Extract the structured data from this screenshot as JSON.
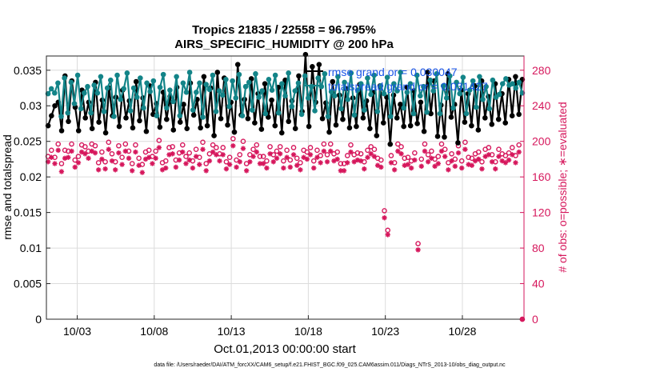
{
  "chart_data": {
    "type": "line",
    "title": "Tropics 21835 / 22558 = 96.795%",
    "subtitle": "AIRS_SPECIFIC_HUMIDITY @ 200 hPa",
    "xlabel": "Oct.01,2013 00:00:00 start",
    "ylabel_left": "rmse and totalspread",
    "ylabel_right": "# of obs: o=possible; ∗=evaluated",
    "footer": "data file: /Users/raeder/DAI/ATM_forcXX/CAM6_setup/f.e21.FHIST_BGC.f09_025.CAM6assim.011/Diags_NTrS_2013-10/obs_diag_output.nc",
    "x_range_days": [
      1,
      32
    ],
    "x_ticks": [
      {
        "day": 3,
        "label": "10/03"
      },
      {
        "day": 8,
        "label": "10/08"
      },
      {
        "day": 13,
        "label": "10/13"
      },
      {
        "day": 18,
        "label": "10/18"
      },
      {
        "day": 23,
        "label": "10/23"
      },
      {
        "day": 28,
        "label": "10/28"
      }
    ],
    "ylim_left": [
      0,
      0.037
    ],
    "yticks_left": [
      "0",
      "0.005",
      "0.01",
      "0.015",
      "0.02",
      "0.025",
      "0.03",
      "0.035"
    ],
    "ylim_right": [
      0,
      296
    ],
    "yticks_right": [
      "0",
      "40",
      "80",
      "120",
      "160",
      "200",
      "240",
      "280"
    ],
    "grid": true,
    "legend_position": "top-right",
    "series": [
      {
        "name": "rmse",
        "legend": "rmse grand or = 0.030047",
        "axis": "left",
        "color": "#000000",
        "values": [
          0.0272,
          0.0286,
          0.03,
          0.0305,
          0.0265,
          0.0342,
          0.0278,
          0.0335,
          0.0298,
          0.0265,
          0.0322,
          0.0283,
          0.0305,
          0.0268,
          0.0333,
          0.0277,
          0.0308,
          0.0262,
          0.0325,
          0.0286,
          0.0312,
          0.0271,
          0.0322,
          0.0283,
          0.0307,
          0.0269,
          0.0334,
          0.0279,
          0.0311,
          0.0264,
          0.0328,
          0.0288,
          0.0303,
          0.027,
          0.0319,
          0.0281,
          0.0313,
          0.0266,
          0.0326,
          0.0277,
          0.0302,
          0.0268,
          0.0332,
          0.0287,
          0.0309,
          0.0269,
          0.0341,
          0.0272,
          0.0325,
          0.0258,
          0.0347,
          0.0282,
          0.0339,
          0.0273,
          0.0305,
          0.0263,
          0.0358,
          0.0287,
          0.0309,
          0.0282,
          0.0338,
          0.0276,
          0.0317,
          0.0267,
          0.0331,
          0.0284,
          0.0308,
          0.0272,
          0.0326,
          0.0262,
          0.0336,
          0.0278,
          0.0307,
          0.0268,
          0.0342,
          0.0292,
          0.0372,
          0.0271,
          0.0355,
          0.0305,
          0.0358,
          0.0282,
          0.0304,
          0.0263,
          0.0334,
          0.0273,
          0.0315,
          0.0281,
          0.0324,
          0.0269,
          0.0311,
          0.0271,
          0.033,
          0.0283,
          0.0307,
          0.0268,
          0.0319,
          0.0258,
          0.0328,
          0.0276,
          0.0312,
          0.0246,
          0.0315,
          0.0283,
          0.0302,
          0.0271,
          0.0326,
          0.0272,
          0.0321,
          0.0275,
          0.0305,
          0.0264,
          0.0347,
          0.0289,
          0.0335,
          0.0257,
          0.0301,
          0.0256,
          0.0345,
          0.0284,
          0.0302,
          0.0248,
          0.0322,
          0.0277,
          0.0317,
          0.0272,
          0.0328,
          0.0266,
          0.0335,
          0.0283,
          0.0313,
          0.0274,
          0.0331,
          0.0281,
          0.0317,
          0.0276,
          0.0337,
          0.0286,
          0.0341,
          0.0288,
          0.0337
        ]
      },
      {
        "name": "totalspread",
        "legend": "totalspread grand or = 0.031427",
        "axis": "left",
        "color": "#138488",
        "values": [
          0.0317,
          0.0324,
          0.0318,
          0.0332,
          0.0285,
          0.0339,
          0.029,
          0.0333,
          0.0303,
          0.0343,
          0.0296,
          0.0318,
          0.0327,
          0.029,
          0.0329,
          0.0318,
          0.0341,
          0.0292,
          0.0325,
          0.0336,
          0.0285,
          0.0343,
          0.0309,
          0.0324,
          0.0346,
          0.0293,
          0.0325,
          0.0312,
          0.0339,
          0.0297,
          0.0332,
          0.032,
          0.0335,
          0.0286,
          0.0326,
          0.0344,
          0.0297,
          0.0322,
          0.0306,
          0.0341,
          0.0286,
          0.0332,
          0.0319,
          0.0347,
          0.0294,
          0.0319,
          0.0332,
          0.0284,
          0.033,
          0.0323,
          0.0343,
          0.0292,
          0.0321,
          0.0315,
          0.0337,
          0.0299,
          0.0335,
          0.0311,
          0.0344,
          0.0286,
          0.0327,
          0.0333,
          0.0294,
          0.0345,
          0.0312,
          0.0321,
          0.0289,
          0.0337,
          0.0322,
          0.0343,
          0.029,
          0.0331,
          0.0314,
          0.0346,
          0.0299,
          0.0321,
          0.0332,
          0.0288,
          0.0342,
          0.0311,
          0.0327,
          0.0293,
          0.0339,
          0.0327,
          0.0345,
          0.0285,
          0.032,
          0.0314,
          0.0341,
          0.0296,
          0.0333,
          0.0309,
          0.0346,
          0.0287,
          0.0322,
          0.0331,
          0.0294,
          0.0339,
          0.0316,
          0.0343,
          0.0292,
          0.0328,
          0.0317,
          0.034,
          0.0285,
          0.0331,
          0.0321,
          0.0347,
          0.0297,
          0.0319,
          0.0331,
          0.0289,
          0.0343,
          0.0314,
          0.0327,
          0.0291,
          0.0336,
          0.0321,
          0.0345,
          0.0289,
          0.0328,
          0.0311,
          0.0342,
          0.0297,
          0.0333,
          0.0317,
          0.034,
          0.0289,
          0.0322,
          0.0335,
          0.0298,
          0.0341,
          0.0309,
          0.0327,
          0.0296,
          0.0336,
          0.0312,
          0.0316,
          0.0331,
          0.0338,
          0.0329,
          0.0331,
          0.0325,
          0.0333,
          0.0318
        ]
      },
      {
        "name": "obs_possible",
        "legend": "o = possible",
        "axis": "right",
        "color": "#d6175c",
        "values": [
          183,
          190,
          182,
          197,
          175,
          190,
          189,
          197,
          179,
          183,
          196,
          194,
          189,
          197,
          195,
          176,
          188,
          177,
          199,
          186,
          177,
          195,
          182,
          197,
          189,
          175,
          196,
          181,
          174,
          188,
          190,
          183,
          189,
          201,
          176,
          178,
          193,
          194,
          179,
          187,
          196,
          183,
          187,
          178,
          191,
          182,
          199,
          175,
          186,
          196,
          193,
          186,
          193,
          177,
          182,
          203,
          179,
          185,
          200,
          175,
          185,
          191,
          196,
          183,
          183,
          178,
          194,
          185,
          189,
          194,
          178,
          190,
          179,
          193,
          181,
          176,
          190,
          188,
          193,
          178,
          190,
          184,
          197,
          185,
          197,
          186,
          188,
          175,
          175,
          184,
          196,
          185,
          187,
          186,
          177,
          190,
          194,
          191,
          181,
          179,
          122,
          100,
          184,
          176,
          197,
          194,
          181,
          182,
          178,
          187,
          85,
          180,
          197,
          185,
          189,
          180,
          183,
          197,
          191,
          176,
          186,
          180,
          195,
          178,
          199,
          182,
          181,
          186,
          188,
          177,
          191,
          193,
          185,
          177,
          191,
          186,
          184,
          187,
          193,
          184,
          196,
          0
        ]
      },
      {
        "name": "obs_evaluated",
        "legend": "∗ = evaluated",
        "axis": "right",
        "color": "#d6175c",
        "values": [
          177,
          182,
          175,
          190,
          166,
          181,
          182,
          189,
          171,
          176,
          188,
          186,
          181,
          189,
          187,
          168,
          180,
          169,
          191,
          178,
          168,
          187,
          174,
          189,
          181,
          167,
          188,
          173,
          165,
          180,
          182,
          175,
          181,
          193,
          168,
          170,
          185,
          186,
          171,
          179,
          188,
          175,
          179,
          170,
          183,
          174,
          191,
          167,
          178,
          188,
          185,
          178,
          185,
          169,
          174,
          195,
          171,
          177,
          192,
          167,
          177,
          183,
          188,
          175,
          175,
          170,
          186,
          177,
          181,
          186,
          170,
          182,
          171,
          185,
          173,
          168,
          182,
          180,
          185,
          170,
          182,
          176,
          189,
          177,
          189,
          178,
          180,
          167,
          167,
          176,
          188,
          177,
          179,
          178,
          169,
          182,
          186,
          183,
          173,
          171,
          114,
          95,
          176,
          168,
          189,
          186,
          173,
          174,
          170,
          179,
          78,
          172,
          189,
          177,
          181,
          172,
          175,
          189,
          183,
          168,
          178,
          172,
          187,
          170,
          191,
          174,
          173,
          178,
          180,
          169,
          183,
          185,
          177,
          169,
          183,
          178,
          176,
          179,
          185,
          176,
          188,
          0
        ]
      }
    ]
  }
}
